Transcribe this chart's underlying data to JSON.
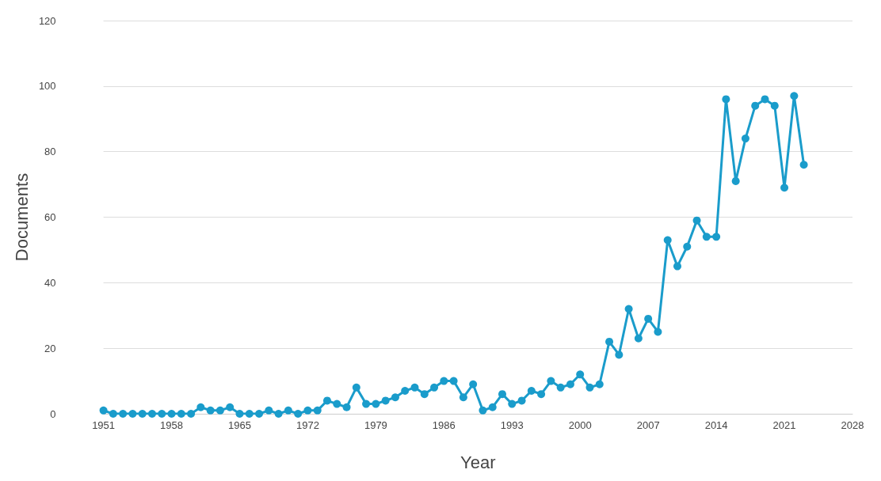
{
  "chart_data": {
    "type": "line",
    "xlabel": "Year",
    "ylabel": "Documents",
    "x": [
      1951,
      1952,
      1953,
      1954,
      1955,
      1956,
      1957,
      1958,
      1959,
      1960,
      1961,
      1962,
      1963,
      1964,
      1965,
      1966,
      1967,
      1968,
      1969,
      1970,
      1971,
      1972,
      1973,
      1974,
      1975,
      1976,
      1977,
      1978,
      1979,
      1980,
      1981,
      1982,
      1983,
      1984,
      1985,
      1986,
      1987,
      1988,
      1989,
      1990,
      1991,
      1992,
      1993,
      1994,
      1995,
      1996,
      1997,
      1998,
      1999,
      2000,
      2001,
      2002,
      2003,
      2004,
      2005,
      2006,
      2007,
      2008,
      2009,
      2010,
      2011,
      2012,
      2013,
      2014,
      2015,
      2016,
      2017,
      2018,
      2019,
      2020,
      2021,
      2022,
      2023
    ],
    "series": [
      {
        "color": "#1a9ccb",
        "values": [
          1,
          0,
          0,
          0,
          0,
          0,
          0,
          0,
          0,
          0,
          2,
          1,
          1,
          2,
          0,
          0,
          0,
          1,
          0,
          1,
          0,
          1,
          1,
          4,
          3,
          2,
          8,
          3,
          3,
          4,
          5,
          7,
          8,
          6,
          8,
          10,
          10,
          5,
          9,
          1,
          2,
          6,
          3,
          4,
          7,
          6,
          10,
          8,
          9,
          12,
          8,
          9,
          22,
          18,
          32,
          23,
          29,
          25,
          53,
          45,
          51,
          59,
          54,
          54,
          96,
          71,
          84,
          94,
          96,
          94,
          69,
          97,
          76
        ]
      }
    ],
    "xlim": [
      1951,
      2028
    ],
    "xticks": [
      1951,
      1958,
      1965,
      1972,
      1979,
      1986,
      1993,
      2000,
      2007,
      2014,
      2021,
      2028
    ],
    "ylim": [
      0,
      120
    ],
    "yticks": [
      0,
      20,
      40,
      60,
      80,
      100,
      120
    ],
    "grid": "y",
    "marker": "circle",
    "line_style": "solid"
  }
}
